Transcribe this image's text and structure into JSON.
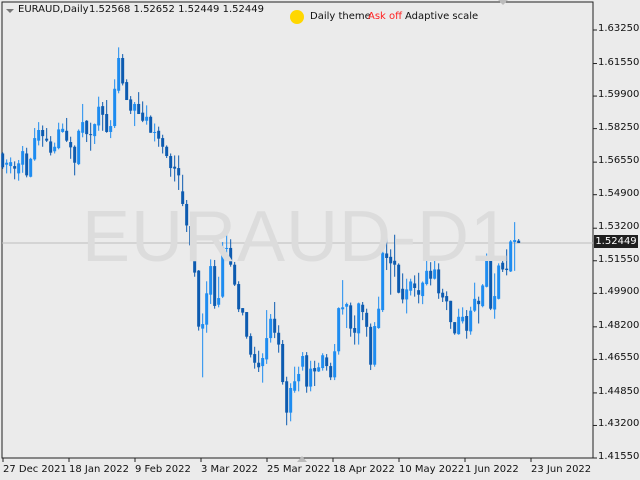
{
  "header": {
    "symbol": "EURAUD,Daily",
    "ohlc": "1.52568 1.52652 1.52449 1.52449",
    "theme_label": "Daily theme",
    "ask_label": "Ask off",
    "scale_label": "Adaptive scale"
  },
  "watermark": "EURAUD-D1",
  "current_price": "1.52449",
  "colors": {
    "background": "#ebebeb",
    "bull": "#1e8cf0",
    "bear": "#0d5bb0",
    "theme_dot": "#ffd700",
    "ask_off": "#ff2020",
    "price_line": "#bdbdbd"
  },
  "chart_data": {
    "type": "candlestick",
    "ylim": [
      1.4155,
      1.6325
    ],
    "y_ticks": [
      "1.63250",
      "1.61550",
      "1.59900",
      "1.58250",
      "1.56550",
      "1.54900",
      "1.53200",
      "1.51550",
      "1.49900",
      "1.48200",
      "1.46550",
      "1.44850",
      "1.43200",
      "1.41550"
    ],
    "x_ticks": [
      "27 Dec 2021",
      "18 Jan 2022",
      "9 Feb 2022",
      "3 Mar 2022",
      "25 Mar 2022",
      "18 Apr 2022",
      "10 May 2022",
      "1 Jun 2022",
      "23 Jun 2022"
    ],
    "ohlc": [
      [
        1.5699,
        1.5705,
        1.562,
        1.5629
      ],
      [
        1.5642,
        1.5669,
        1.5598,
        1.5652
      ],
      [
        1.5635,
        1.5679,
        1.5598,
        1.5655
      ],
      [
        1.5635,
        1.5659,
        1.5568,
        1.5622
      ],
      [
        1.5598,
        1.5666,
        1.5561,
        1.5649
      ],
      [
        1.5642,
        1.5737,
        1.5601,
        1.5711
      ],
      [
        1.5699,
        1.5728,
        1.5578,
        1.5588
      ],
      [
        1.5581,
        1.5677,
        1.5578,
        1.5672
      ],
      [
        1.5669,
        1.5828,
        1.5662,
        1.5777
      ],
      [
        1.5764,
        1.5858,
        1.574,
        1.5818
      ],
      [
        1.5818,
        1.5841,
        1.5733,
        1.5787
      ],
      [
        1.5774,
        1.5828,
        1.5757,
        1.5764
      ],
      [
        1.576,
        1.5787,
        1.5689,
        1.5703
      ],
      [
        1.571,
        1.5754,
        1.5699,
        1.5733
      ],
      [
        1.5726,
        1.5855,
        1.572,
        1.5821
      ],
      [
        1.5808,
        1.5851,
        1.5804,
        1.5824
      ],
      [
        1.5814,
        1.5879,
        1.5757,
        1.5764
      ],
      [
        1.5757,
        1.5784,
        1.5672,
        1.573
      ],
      [
        1.5733,
        1.574,
        1.5588,
        1.5652
      ],
      [
        1.5645,
        1.5821,
        1.564,
        1.5814
      ],
      [
        1.5804,
        1.595,
        1.5781,
        1.5858
      ],
      [
        1.5865,
        1.5868,
        1.5757,
        1.5797
      ],
      [
        1.5797,
        1.5855,
        1.5713,
        1.5794
      ],
      [
        1.5787,
        1.5851,
        1.5747,
        1.5848
      ],
      [
        1.5841,
        1.5987,
        1.5814,
        1.5936
      ],
      [
        1.5939,
        1.596,
        1.5814,
        1.5895
      ],
      [
        1.5899,
        1.597,
        1.5804,
        1.5808
      ],
      [
        1.5808,
        1.5868,
        1.5777,
        1.5838
      ],
      [
        1.5838,
        1.6075,
        1.5828,
        1.6027
      ],
      [
        1.6017,
        1.6237,
        1.6004,
        1.6183
      ],
      [
        1.6183,
        1.6203,
        1.6044,
        1.6054
      ],
      [
        1.6061,
        1.6075,
        1.597,
        1.597
      ],
      [
        1.5973,
        1.599,
        1.5899,
        1.5916
      ],
      [
        1.5916,
        1.596,
        1.5838,
        1.595
      ],
      [
        1.595,
        1.601,
        1.5899,
        1.5899
      ],
      [
        1.5906,
        1.5963,
        1.5858,
        1.5865
      ],
      [
        1.5865,
        1.5943,
        1.5845,
        1.5885
      ],
      [
        1.5885,
        1.5892,
        1.5804,
        1.5804
      ],
      [
        1.5804,
        1.5851,
        1.576,
        1.5808
      ],
      [
        1.5814,
        1.5835,
        1.5733,
        1.5774
      ],
      [
        1.5777,
        1.5794,
        1.5699,
        1.5733
      ],
      [
        1.5733,
        1.574,
        1.5676,
        1.5686
      ],
      [
        1.5686,
        1.5699,
        1.5581,
        1.5625
      ],
      [
        1.5632,
        1.5689,
        1.5557,
        1.5622
      ],
      [
        1.5625,
        1.5689,
        1.5514,
        1.5588
      ],
      [
        1.5507,
        1.5591,
        1.5432,
        1.5443
      ],
      [
        1.5443,
        1.5463,
        1.5301,
        1.5334
      ],
      [
        1.5331,
        1.5345,
        1.5226,
        1.5233
      ],
      [
        1.5233,
        1.5233,
        1.5074,
        1.5095
      ],
      [
        1.5105,
        1.5108,
        1.4801,
        1.4821
      ],
      [
        1.4811,
        1.4888,
        1.4564,
        1.4834
      ],
      [
        1.4831,
        1.5051,
        1.479,
        1.499
      ],
      [
        1.4983,
        1.5162,
        1.4936,
        1.5128
      ],
      [
        1.5128,
        1.5159,
        1.4912,
        1.4926
      ],
      [
        1.4932,
        1.5074,
        1.4919,
        1.4966
      ],
      [
        1.4973,
        1.525,
        1.4966,
        1.5223
      ],
      [
        1.5216,
        1.5331,
        1.5176,
        1.522
      ],
      [
        1.522,
        1.5264,
        1.5125,
        1.5135
      ],
      [
        1.5135,
        1.5149,
        1.5027,
        1.5034
      ],
      [
        1.5037,
        1.5051,
        1.4895,
        1.4909
      ],
      [
        1.4915,
        1.4915,
        1.4878,
        1.4892
      ],
      [
        1.4895,
        1.4895,
        1.476,
        1.477
      ],
      [
        1.4773,
        1.4787,
        1.4665,
        1.4679
      ],
      [
        1.4682,
        1.4719,
        1.4608,
        1.4638
      ],
      [
        1.4638,
        1.4699,
        1.4591,
        1.4615
      ],
      [
        1.4621,
        1.4686,
        1.4537,
        1.4662
      ],
      [
        1.4655,
        1.4905,
        1.4632,
        1.4763
      ],
      [
        1.4763,
        1.4885,
        1.474,
        1.4861
      ],
      [
        1.4861,
        1.4946,
        1.4763,
        1.479
      ],
      [
        1.479,
        1.4828,
        1.4689,
        1.473
      ],
      [
        1.4733,
        1.4753,
        1.4527,
        1.454
      ],
      [
        1.4544,
        1.4567,
        1.4321,
        1.4385
      ],
      [
        1.4385,
        1.4534,
        1.4341,
        1.451
      ],
      [
        1.4496,
        1.4618,
        1.4486,
        1.4544
      ],
      [
        1.4544,
        1.4618,
        1.4493,
        1.4581
      ],
      [
        1.4618,
        1.4692,
        1.4598,
        1.4672
      ],
      [
        1.4676,
        1.4692,
        1.4486,
        1.4517
      ],
      [
        1.4517,
        1.4648,
        1.4493,
        1.4608
      ],
      [
        1.4611,
        1.4648,
        1.452,
        1.4594
      ],
      [
        1.4594,
        1.4638,
        1.4591,
        1.4615
      ],
      [
        1.4611,
        1.4686,
        1.4598,
        1.4676
      ],
      [
        1.4665,
        1.4682,
        1.4598,
        1.4621
      ],
      [
        1.4621,
        1.4638,
        1.455,
        1.4564
      ],
      [
        1.4564,
        1.4733,
        1.455,
        1.4696
      ],
      [
        1.4696,
        1.4919,
        1.4679,
        1.4915
      ],
      [
        1.4909,
        1.5057,
        1.4882,
        1.4919
      ],
      [
        1.4922,
        1.4943,
        1.4814,
        1.4936
      ],
      [
        1.4929,
        1.4943,
        1.477,
        1.4811
      ],
      [
        1.4814,
        1.4878,
        1.473,
        1.479
      ],
      [
        1.4787,
        1.4943,
        1.473,
        1.4939
      ],
      [
        1.4932,
        1.4946,
        1.4854,
        1.4895
      ],
      [
        1.4891,
        1.4912,
        1.477,
        1.482
      ],
      [
        1.482,
        1.4837,
        1.4601,
        1.4628
      ],
      [
        1.4628,
        1.4844,
        1.4618,
        1.4824
      ],
      [
        1.4814,
        1.4973,
        1.481,
        1.4912
      ],
      [
        1.4905,
        1.5213,
        1.4895,
        1.5196
      ],
      [
        1.5192,
        1.528,
        1.5108,
        1.5169
      ],
      [
        1.5175,
        1.5213,
        1.4983,
        1.5142
      ],
      [
        1.5155,
        1.5287,
        1.5074,
        1.5135
      ],
      [
        1.5135,
        1.5142,
        1.499,
        1.4993
      ],
      [
        1.5013,
        1.5091,
        1.4939,
        1.4959
      ],
      [
        1.4959,
        1.5064,
        1.4888,
        1.501
      ],
      [
        1.5003,
        1.5064,
        1.4979,
        1.505
      ],
      [
        1.504,
        1.5081,
        1.4973,
        1.5017
      ],
      [
        1.5006,
        1.5094,
        1.4939,
        1.4983
      ],
      [
        1.4976,
        1.505,
        1.4935,
        1.5044
      ],
      [
        1.5037,
        1.5206,
        1.503,
        1.5104
      ],
      [
        1.5104,
        1.5148,
        1.503,
        1.5064
      ],
      [
        1.5064,
        1.5169,
        1.506,
        1.5111
      ],
      [
        1.5111,
        1.5142,
        1.4962,
        1.499
      ],
      [
        1.4993,
        1.5013,
        1.4946,
        1.4969
      ],
      [
        1.4976,
        1.5,
        1.4905,
        1.4949
      ],
      [
        1.4952,
        1.4952,
        1.481,
        1.4844
      ],
      [
        1.4844,
        1.4844,
        1.478,
        1.4787
      ],
      [
        1.4783,
        1.4912,
        1.478,
        1.4871
      ],
      [
        1.4848,
        1.4919,
        1.4837,
        1.4871
      ],
      [
        1.4875,
        1.4905,
        1.476,
        1.48
      ],
      [
        1.4797,
        1.4922,
        1.478,
        1.4902
      ],
      [
        1.4902,
        1.5044,
        1.4895,
        1.4962
      ],
      [
        1.4952,
        1.4973,
        1.4837,
        1.4935
      ],
      [
        1.4925,
        1.5037,
        1.4919,
        1.503
      ],
      [
        1.5023,
        1.5192,
        1.502,
        1.5158
      ],
      [
        1.5155,
        1.5196,
        1.4905,
        1.4912
      ],
      [
        1.4908,
        1.5091,
        1.4861,
        1.4976
      ],
      [
        1.4962,
        1.5142,
        1.4959,
        1.5131
      ],
      [
        1.5145,
        1.5158,
        1.5098,
        1.5111
      ],
      [
        1.5115,
        1.5213,
        1.5081,
        1.5108
      ],
      [
        1.5101,
        1.526,
        1.5098,
        1.5253
      ],
      [
        1.525,
        1.5351,
        1.5104,
        1.526
      ],
      [
        1.52568,
        1.52652,
        1.52449,
        1.52449
      ]
    ]
  }
}
